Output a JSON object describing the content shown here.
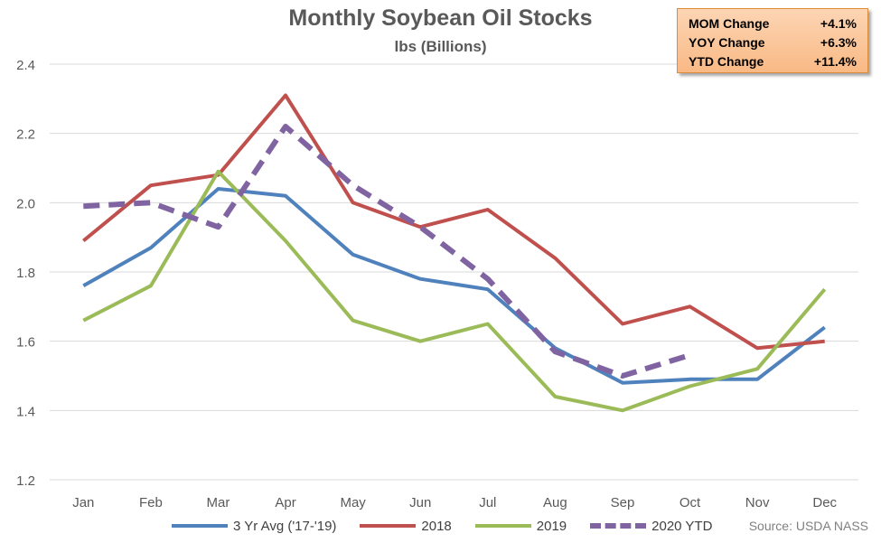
{
  "chart_data": {
    "type": "line",
    "title": "Monthly Soybean Oil Stocks",
    "subtitle": "lbs (Billions)",
    "xlabel": "",
    "ylabel": "",
    "ylim": [
      1.2,
      2.4
    ],
    "yticks": [
      "1.2",
      "1.4",
      "1.6",
      "1.8",
      "2.0",
      "2.2",
      "2.4"
    ],
    "categories": [
      "Jan",
      "Feb",
      "Mar",
      "Apr",
      "May",
      "Jun",
      "Jul",
      "Aug",
      "Sep",
      "Oct",
      "Nov",
      "Dec"
    ],
    "grid": "horizontal",
    "legend_position": "bottom",
    "series": [
      {
        "name": "3 Yr Avg ('17-'19)",
        "color": "#4f81bd",
        "dashed": false,
        "values": [
          1.76,
          1.87,
          2.04,
          2.02,
          1.85,
          1.78,
          1.75,
          1.58,
          1.48,
          1.49,
          1.49,
          1.64
        ]
      },
      {
        "name": "2018",
        "color": "#c0504d",
        "dashed": false,
        "values": [
          1.89,
          2.05,
          2.08,
          2.31,
          2.0,
          1.93,
          1.98,
          1.84,
          1.65,
          1.7,
          1.58,
          1.6
        ]
      },
      {
        "name": "2019",
        "color": "#9bbb59",
        "dashed": false,
        "values": [
          1.66,
          1.76,
          2.09,
          1.89,
          1.66,
          1.6,
          1.65,
          1.44,
          1.4,
          1.47,
          1.52,
          1.75
        ]
      },
      {
        "name": "2020 YTD",
        "color": "#8064a2",
        "dashed": true,
        "values": [
          1.99,
          2.0,
          1.93,
          2.22,
          2.05,
          1.93,
          1.78,
          1.57,
          1.5,
          1.56,
          null,
          null
        ]
      }
    ],
    "source": "Source: USDA NASS"
  },
  "stats": [
    {
      "label": "MOM Change",
      "value": "+4.1%"
    },
    {
      "label": "YOY Change",
      "value": "+6.3%"
    },
    {
      "label": "YTD Change",
      "value": "+11.4%"
    }
  ]
}
